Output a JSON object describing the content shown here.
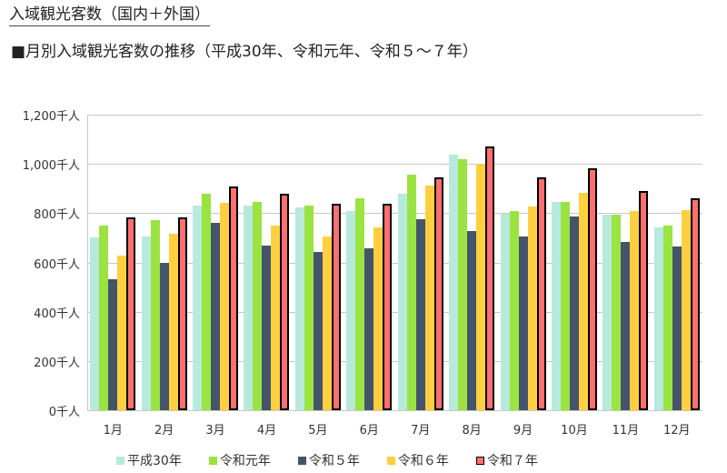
{
  "header": {
    "title": "入域観光客数（国内＋外国）",
    "subtitle": "■月別入域観光客数の推移（平成30年、令和元年、令和５～７年）"
  },
  "chart_data": {
    "type": "bar",
    "title": "月別入域観光客数の推移（平成30年、令和元年、令和５～７年）",
    "xlabel": "",
    "ylabel": "千人",
    "ylim": [
      0,
      1200
    ],
    "yticks": [
      "0千人",
      "200千人",
      "400千人",
      "600千人",
      "800千人",
      "1,000千人",
      "1,200千人"
    ],
    "grid": true,
    "legend_position": "bottom",
    "categories": [
      "1月",
      "2月",
      "3月",
      "4月",
      "5月",
      "6月",
      "7月",
      "8月",
      "9月",
      "10月",
      "11月",
      "12月"
    ],
    "series": [
      {
        "name": "平成30年",
        "color": "#B8E9DD",
        "values": [
          700,
          707,
          832,
          829,
          825,
          807,
          880,
          1037,
          797,
          846,
          795,
          744
        ]
      },
      {
        "name": "令和元年",
        "color": "#9BE340",
        "values": [
          751,
          770,
          880,
          847,
          832,
          862,
          958,
          1018,
          807,
          846,
          795,
          750
        ]
      },
      {
        "name": "令和５年",
        "color": "#44546A",
        "values": [
          530,
          597,
          762,
          667,
          641,
          659,
          777,
          726,
          707,
          785,
          684,
          664
        ]
      },
      {
        "name": "令和６年",
        "color": "#FFCF3F",
        "values": [
          626,
          715,
          843,
          748,
          707,
          744,
          913,
          1000,
          828,
          884,
          808,
          814
        ]
      },
      {
        "name": "令和７年",
        "color": "#FF6F6F",
        "border": "#000000",
        "values": [
          781,
          781,
          910,
          880,
          840,
          840,
          947,
          1071,
          946,
          983,
          891,
          859
        ]
      }
    ]
  },
  "legend": [
    {
      "label": "平成30年"
    },
    {
      "label": "令和元年"
    },
    {
      "label": "令和５年"
    },
    {
      "label": "令和６年"
    },
    {
      "label": "令和７年"
    }
  ]
}
